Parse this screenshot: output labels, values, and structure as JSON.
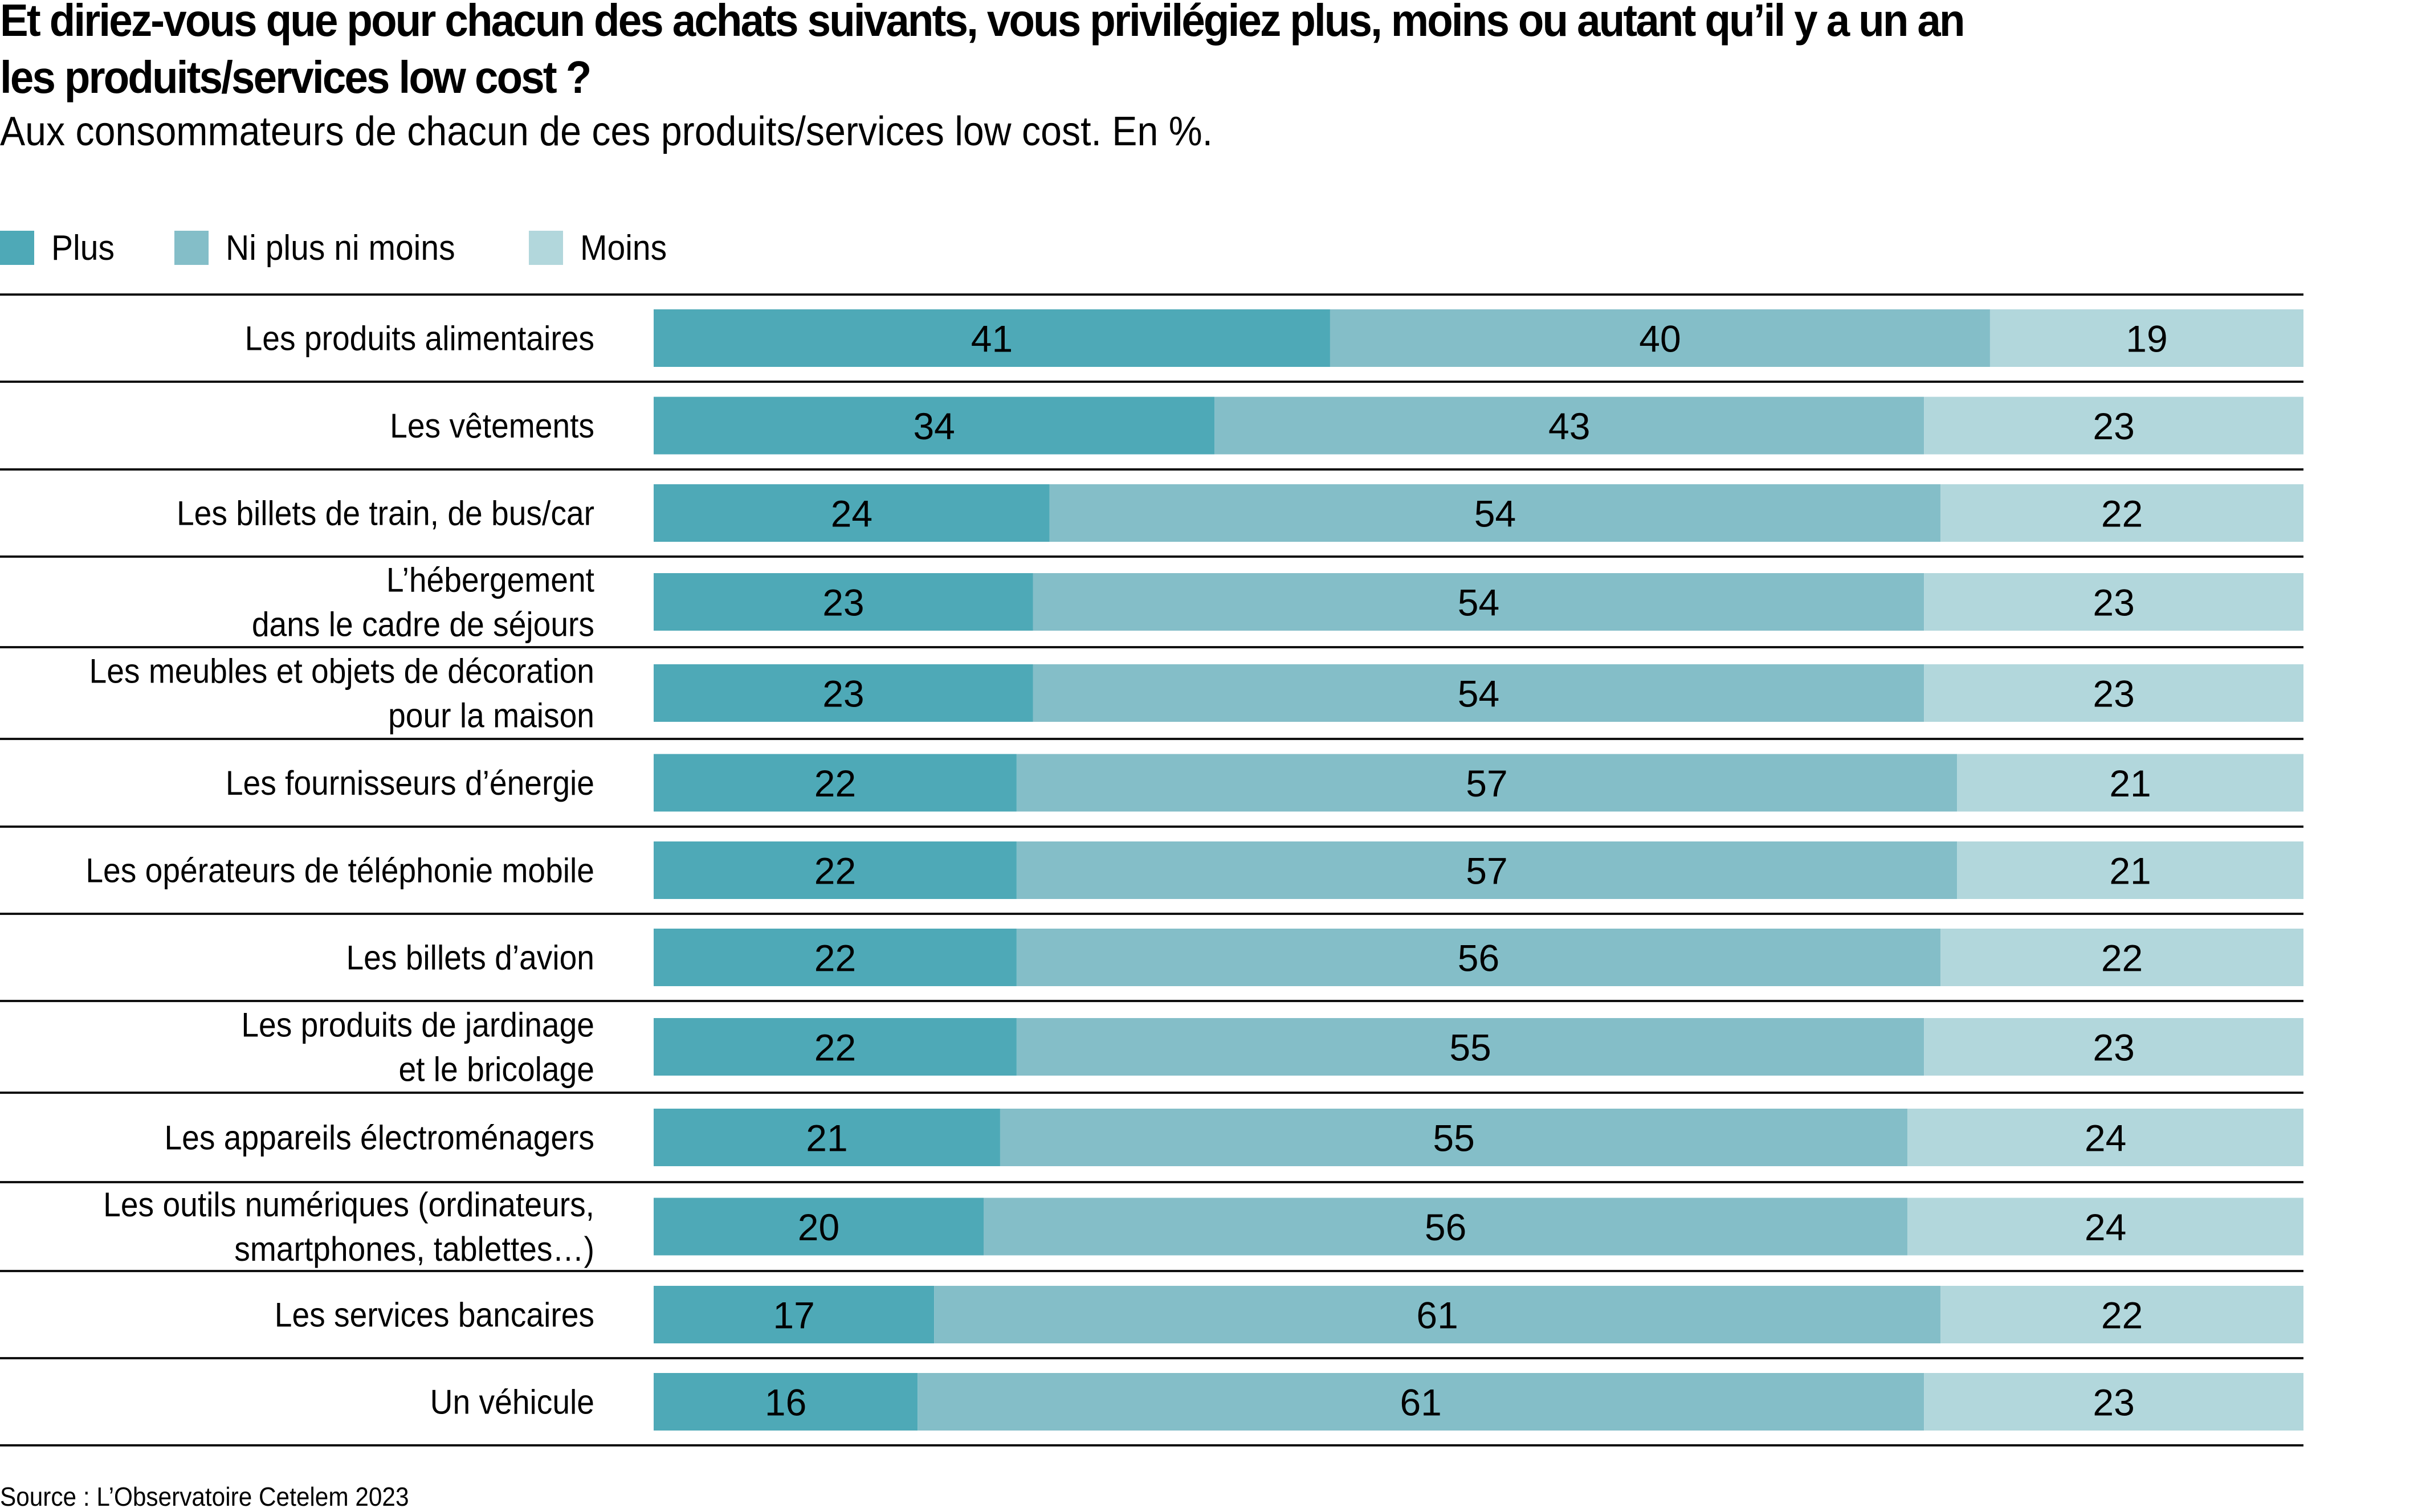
{
  "chart_data": {
    "type": "bar",
    "orientation": "horizontal",
    "stacked": true,
    "title": "Et diriez-vous que pour chacun des achats suivants, vous privilégiez plus, moins ou autant qu’il y a un an les produits/services low cost ?",
    "title_lines": [
      "Et diriez-vous que pour chacun des achats suivants, vous privilégiez plus, moins ou autant qu’il y a un an",
      "les produits/services low cost ?"
    ],
    "subtitle": "Aux consommateurs de chacun de ces produits/services low cost. En %.",
    "source": "Source : L’Observatoire Cetelem 2023",
    "xlabel": "",
    "ylabel": "",
    "xlim": [
      0,
      100
    ],
    "grid": false,
    "legend_position": "top-left",
    "categories": [
      [
        "Les produits alimentaires"
      ],
      [
        "Les vêtements"
      ],
      [
        "Les billets de train, de bus/car"
      ],
      [
        "L’hébergement",
        "dans le cadre de séjours"
      ],
      [
        "Les meubles et objets de décoration",
        "pour la maison"
      ],
      [
        "Les fournisseurs d’énergie"
      ],
      [
        "Les opérateurs de téléphonie mobile"
      ],
      [
        "Les billets d’avion"
      ],
      [
        "Les produits de jardinage",
        "et le bricolage"
      ],
      [
        "Les appareils électroménagers"
      ],
      [
        "Les outils numériques (ordinateurs,",
        "smartphones, tablettes…)"
      ],
      [
        "Les services bancaires"
      ],
      [
        "Un véhicule"
      ]
    ],
    "series": [
      {
        "name": "Plus",
        "color": "#4ea9b7",
        "values": [
          41,
          34,
          24,
          23,
          23,
          22,
          22,
          22,
          22,
          21,
          20,
          17,
          16
        ]
      },
      {
        "name": "Ni plus ni moins",
        "color": "#84bec8",
        "values": [
          40,
          43,
          54,
          54,
          54,
          57,
          57,
          56,
          55,
          55,
          56,
          61,
          61
        ]
      },
      {
        "name": "Moins",
        "color": "#b2d7dc",
        "values": [
          19,
          23,
          22,
          23,
          23,
          21,
          21,
          22,
          23,
          24,
          24,
          22,
          23
        ]
      }
    ]
  }
}
